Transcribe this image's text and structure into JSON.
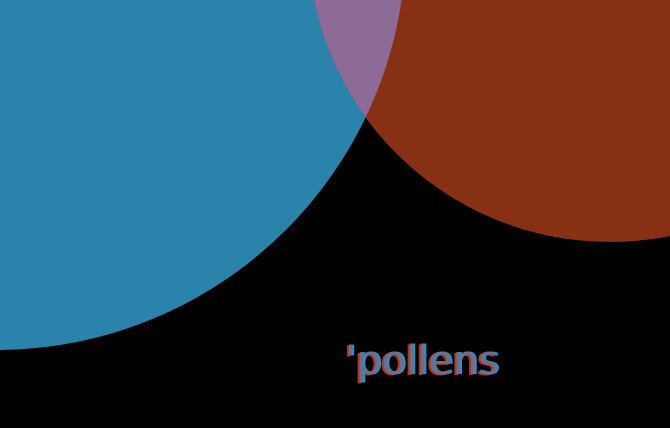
{
  "word": {
    "text": "'pollens"
  },
  "colors": {
    "background": "#000000",
    "blue_circle": "#2983ab",
    "brown_circle": "#873014",
    "overlap": "#8c6c96",
    "text_main": "#6e6e8c",
    "text_red": "#a83a22",
    "text_blue": "#2f8fc2"
  }
}
